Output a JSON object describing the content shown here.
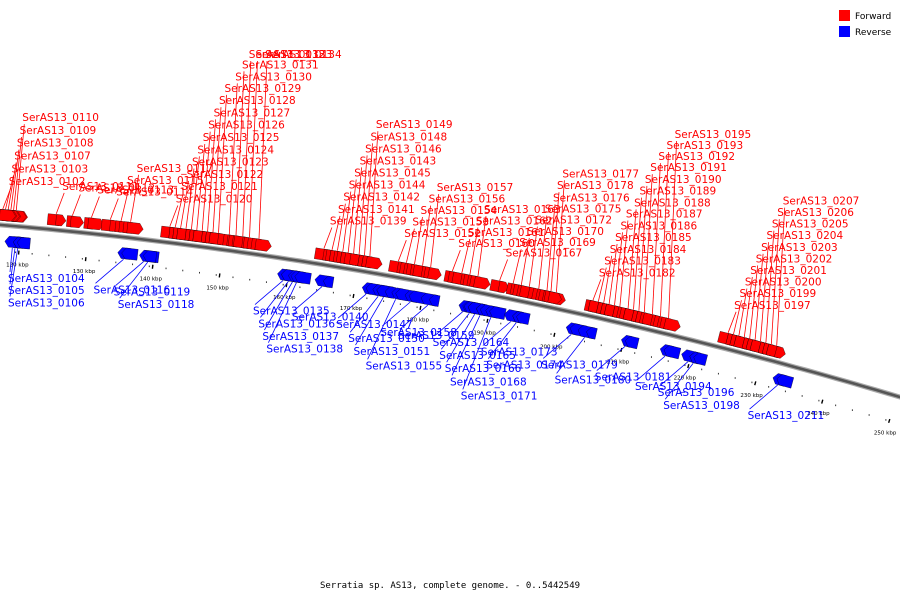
{
  "legend": {
    "forward_label": "Forward",
    "reverse_label": "Reverse",
    "forward_color": "#ff0000",
    "reverse_color": "#0000ff"
  },
  "caption": "Serratia sp. AS13, complete genome. - 0..5442549",
  "axis": {
    "start_kbp": 117,
    "end_kbp": 251,
    "tick_labels": [
      "120 kbp",
      "130 kbp",
      "140 kbp",
      "150 kbp",
      "160 kbp",
      "170 kbp",
      "180 kbp",
      "190 kbp",
      "200 kbp",
      "210 kbp",
      "220 kbp",
      "230 kbp",
      "240 kbp",
      "250 kbp"
    ]
  },
  "labels": [
    {
      "t": "SerAS13_0110",
      "s": "F",
      "kbp": 119.1
    },
    {
      "t": "SerAS13_0109",
      "s": "F",
      "kbp": 118.7
    },
    {
      "t": "SerAS13_0108",
      "s": "F",
      "kbp": 118.3
    },
    {
      "t": "SerAS13_0107",
      "s": "F",
      "kbp": 117.9
    },
    {
      "t": "SerAS13_0105",
      "s": "R",
      "kbp": 119.4
    },
    {
      "t": "SerAS13_0104",
      "s": "R",
      "kbp": 119.0
    },
    {
      "t": "SerAS13_0103",
      "s": "F",
      "kbp": 117.5
    },
    {
      "t": "SerAS13_0102",
      "s": "F",
      "kbp": 117.1
    },
    {
      "t": "SerAS13_0111",
      "s": "F",
      "kbp": 125.0
    },
    {
      "t": "SerAS13_0112",
      "s": "F",
      "kbp": 127.4
    },
    {
      "t": "SerAS13_0113",
      "s": "F",
      "kbp": 130.2
    },
    {
      "t": "SerAS13_0114",
      "s": "F",
      "kbp": 133.0
    },
    {
      "t": "SerAS13_0115",
      "s": "F",
      "kbp": 134.6
    },
    {
      "t": "SerAS13_0117",
      "s": "F",
      "kbp": 136.0
    },
    {
      "t": "SerAS13_0120",
      "s": "F",
      "kbp": 141.8
    },
    {
      "t": "SerAS13_0121",
      "s": "F",
      "kbp": 142.6
    },
    {
      "t": "SerAS13_0122",
      "s": "F",
      "kbp": 143.4
    },
    {
      "t": "SerAS13_0123",
      "s": "F",
      "kbp": 144.2
    },
    {
      "t": "SerAS13_0124",
      "s": "F",
      "kbp": 145.0
    },
    {
      "t": "SerAS13_0125",
      "s": "F",
      "kbp": 145.8
    },
    {
      "t": "SerAS13_0126",
      "s": "F",
      "kbp": 146.6
    },
    {
      "t": "SerAS13_0127",
      "s": "F",
      "kbp": 147.4
    },
    {
      "t": "SerAS13_0128",
      "s": "F",
      "kbp": 148.2
    },
    {
      "t": "SerAS13_0129",
      "s": "F",
      "kbp": 149.0
    },
    {
      "t": "SerAS13_0130",
      "s": "F",
      "kbp": 150.6
    },
    {
      "t": "SerAS13_0131",
      "s": "F",
      "kbp": 151.6
    },
    {
      "t": "SerAS13_0132",
      "s": "F",
      "kbp": 152.6
    },
    {
      "t": "SerAS13_0133",
      "s": "F",
      "kbp": 153.6
    },
    {
      "t": "SerAS13_0134",
      "s": "F",
      "kbp": 155.0
    },
    {
      "t": "SerAS13_0139",
      "s": "F",
      "kbp": 164.6
    },
    {
      "t": "SerAS13_0141",
      "s": "F",
      "kbp": 165.8
    },
    {
      "t": "SerAS13_0142",
      "s": "F",
      "kbp": 166.6
    },
    {
      "t": "SerAS13_0143",
      "s": "F",
      "kbp": 169.0
    },
    {
      "t": "SerAS13_0144",
      "s": "F",
      "kbp": 167.4
    },
    {
      "t": "SerAS13_0145",
      "s": "F",
      "kbp": 168.2
    },
    {
      "t": "SerAS13_0146",
      "s": "F",
      "kbp": 169.8
    },
    {
      "t": "SerAS13_0148",
      "s": "F",
      "kbp": 170.6
    },
    {
      "t": "SerAS13_0149",
      "s": "F",
      "kbp": 171.4
    },
    {
      "t": "SerAS13_0152",
      "s": "F",
      "kbp": 175.6
    },
    {
      "t": "SerAS13_0153",
      "s": "F",
      "kbp": 176.8
    },
    {
      "t": "SerAS13_0154",
      "s": "F",
      "kbp": 178.0
    },
    {
      "t": "SerAS13_0156",
      "s": "F",
      "kbp": 179.2
    },
    {
      "t": "SerAS13_0157",
      "s": "F",
      "kbp": 180.4
    },
    {
      "t": "SerAS13_0160",
      "s": "F",
      "kbp": 183.6
    },
    {
      "t": "SerAS13_0161",
      "s": "F",
      "kbp": 185.0
    },
    {
      "t": "SerAS13_0162",
      "s": "F",
      "kbp": 186.2
    },
    {
      "t": "SerAS13_0163",
      "s": "F",
      "kbp": 187.4
    },
    {
      "t": "SerAS13_0167",
      "s": "F",
      "kbp": 190.6
    },
    {
      "t": "SerAS13_0169",
      "s": "F",
      "kbp": 192.6
    },
    {
      "t": "SerAS13_0170",
      "s": "F",
      "kbp": 193.8
    },
    {
      "t": "SerAS13_0172",
      "s": "F",
      "kbp": 195.0
    },
    {
      "t": "SerAS13_0175",
      "s": "F",
      "kbp": 196.4
    },
    {
      "t": "SerAS13_0176",
      "s": "F",
      "kbp": 197.6
    },
    {
      "t": "SerAS13_0177",
      "s": "F",
      "kbp": 199.0
    },
    {
      "t": "SerAS13_0178",
      "s": "F",
      "kbp": 198.2
    },
    {
      "t": "SerAS13_0182",
      "s": "F",
      "kbp": 204.4
    },
    {
      "t": "SerAS13_0183",
      "s": "F",
      "kbp": 205.2
    },
    {
      "t": "SerAS13_0184",
      "s": "F",
      "kbp": 206.0
    },
    {
      "t": "SerAS13_0185",
      "s": "F",
      "kbp": 206.8
    },
    {
      "t": "SerAS13_0186",
      "s": "F",
      "kbp": 207.6
    },
    {
      "t": "SerAS13_0187",
      "s": "F",
      "kbp": 208.4
    },
    {
      "t": "SerAS13_0188",
      "s": "F",
      "kbp": 209.6
    },
    {
      "t": "SerAS13_0189",
      "s": "F",
      "kbp": 210.4
    },
    {
      "t": "SerAS13_0190",
      "s": "F",
      "kbp": 211.2
    },
    {
      "t": "SerAS13_0191",
      "s": "F",
      "kbp": 212.0
    },
    {
      "t": "SerAS13_0192",
      "s": "F",
      "kbp": 213.2
    },
    {
      "t": "SerAS13_0193",
      "s": "F",
      "kbp": 214.4
    },
    {
      "t": "SerAS13_0195",
      "s": "F",
      "kbp": 215.6
    },
    {
      "t": "SerAS13_0197",
      "s": "F",
      "kbp": 224.4
    },
    {
      "t": "SerAS13_0199",
      "s": "F",
      "kbp": 225.2
    },
    {
      "t": "SerAS13_0200",
      "s": "F",
      "kbp": 226.0
    },
    {
      "t": "SerAS13_0201",
      "s": "F",
      "kbp": 226.8
    },
    {
      "t": "SerAS13_0202",
      "s": "F",
      "kbp": 227.6
    },
    {
      "t": "SerAS13_0203",
      "s": "F",
      "kbp": 228.4
    },
    {
      "t": "SerAS13_0204",
      "s": "F",
      "kbp": 229.2
    },
    {
      "t": "SerAS13_0205",
      "s": "F",
      "kbp": 230.0
    },
    {
      "t": "SerAS13_0206",
      "s": "F",
      "kbp": 230.8
    },
    {
      "t": "SerAS13_0207",
      "s": "F",
      "kbp": 231.6
    },
    {
      "t": "SerAS13_0106",
      "s": "R",
      "kbp": 119.8
    },
    {
      "t": "SerAS13_0116",
      "s": "R",
      "kbp": 135.6
    },
    {
      "t": "SerAS13_0118",
      "s": "R",
      "kbp": 139.2
    },
    {
      "t": "SerAS13_0119",
      "s": "R",
      "kbp": 138.6
    },
    {
      "t": "SerAS13_0135",
      "s": "R",
      "kbp": 159.4
    },
    {
      "t": "SerAS13_0136",
      "s": "R",
      "kbp": 160.2
    },
    {
      "t": "SerAS13_0137",
      "s": "R",
      "kbp": 160.8
    },
    {
      "t": "SerAS13_0138",
      "s": "R",
      "kbp": 161.4
    },
    {
      "t": "SerAS13_0140",
      "s": "R",
      "kbp": 165.2
    },
    {
      "t": "SerAS13_0147",
      "s": "R",
      "kbp": 171.8
    },
    {
      "t": "SerAS13_0150",
      "s": "R",
      "kbp": 173.6
    },
    {
      "t": "SerAS13_0151",
      "s": "R",
      "kbp": 174.4
    },
    {
      "t": "SerAS13_0155",
      "s": "R",
      "kbp": 176.2
    },
    {
      "t": "SerAS13_0158",
      "s": "R",
      "kbp": 178.4
    },
    {
      "t": "SerAS13_0159",
      "s": "R",
      "kbp": 181.0
    },
    {
      "t": "SerAS13_0164",
      "s": "R",
      "kbp": 186.2
    },
    {
      "t": "SerAS13_0165",
      "s": "R",
      "kbp": 187.2
    },
    {
      "t": "SerAS13_0166",
      "s": "R",
      "kbp": 188.0
    },
    {
      "t": "SerAS13_0168",
      "s": "R",
      "kbp": 188.8
    },
    {
      "t": "SerAS13_0171",
      "s": "R",
      "kbp": 190.4
    },
    {
      "t": "SerAS13_0173",
      "s": "R",
      "kbp": 193.4
    },
    {
      "t": "SerAS13_0174",
      "s": "R",
      "kbp": 194.2
    },
    {
      "t": "SerAS13_0179",
      "s": "R",
      "kbp": 202.4
    },
    {
      "t": "SerAS13_0180",
      "s": "R",
      "kbp": 204.4
    },
    {
      "t": "SerAS13_0181",
      "s": "R",
      "kbp": 210.4
    },
    {
      "t": "SerAS13_0194",
      "s": "R",
      "kbp": 216.4
    },
    {
      "t": "SerAS13_0196",
      "s": "R",
      "kbp": 219.8
    },
    {
      "t": "SerAS13_0198",
      "s": "R",
      "kbp": 220.6
    },
    {
      "t": "SerAS13_0211",
      "s": "R",
      "kbp": 233.2
    }
  ]
}
